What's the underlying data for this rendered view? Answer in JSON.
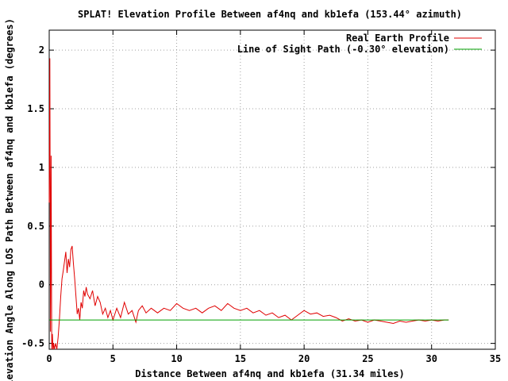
{
  "chart_data": {
    "type": "line",
    "title": "SPLAT! Elevation Profile Between af4nq and kb1efa (153.44° azimuth)",
    "xlabel": "Distance Between af4nq and kb1efa (31.34 miles)",
    "ylabel": "Elevation Angle Along LOS Path Between af4nq and kb1efa (degrees)",
    "xlim": [
      0,
      35
    ],
    "ylim": [
      -0.55,
      2.17
    ],
    "x_ticks": [
      0,
      5,
      10,
      15,
      20,
      25,
      30,
      35
    ],
    "x_tick_labels": [
      "0",
      "5",
      "10",
      "15",
      "20",
      "25",
      "30",
      "35"
    ],
    "y_ticks": [
      -0.5,
      0,
      0.5,
      1,
      1.5,
      2
    ],
    "y_tick_labels": [
      "-0.5",
      "0",
      "0.5",
      "1",
      "1.5",
      "2"
    ],
    "grid": true,
    "legend_position": "top-right",
    "colors": {
      "real_earth": "#e00000",
      "line_of_sight": "#00a000"
    },
    "series": [
      {
        "name": "Real Earth Profile",
        "x": [
          0,
          0.05,
          0.1,
          0.15,
          0.2,
          0.25,
          0.3,
          0.35,
          0.4,
          0.5,
          0.6,
          0.7,
          0.8,
          0.9,
          1.0,
          1.1,
          1.2,
          1.3,
          1.4,
          1.5,
          1.6,
          1.7,
          1.8,
          1.9,
          2.0,
          2.1,
          2.2,
          2.3,
          2.4,
          2.5,
          2.6,
          2.7,
          2.8,
          2.9,
          3.0,
          3.2,
          3.4,
          3.6,
          3.8,
          4.0,
          4.2,
          4.4,
          4.6,
          4.8,
          5.0,
          5.3,
          5.6,
          5.9,
          6.2,
          6.5,
          6.8,
          7.0,
          7.3,
          7.6,
          8.0,
          8.5,
          9.0,
          9.5,
          10.0,
          10.5,
          11.0,
          11.5,
          12.0,
          12.5,
          13.0,
          13.5,
          14.0,
          14.5,
          15.0,
          15.5,
          16.0,
          16.5,
          17.0,
          17.5,
          18.0,
          18.5,
          19.0,
          19.5,
          20.0,
          20.5,
          21.0,
          21.5,
          22.0,
          22.5,
          23.0,
          23.5,
          24.0,
          24.5,
          25.0,
          25.5,
          26.0,
          26.5,
          27.0,
          27.5,
          28.0,
          28.5,
          29.0,
          29.5,
          30.0,
          30.5,
          31.0,
          31.34
        ],
        "values": [
          0.7,
          1.93,
          -0.4,
          1.1,
          -0.55,
          -0.42,
          -0.55,
          -0.5,
          -0.55,
          -0.5,
          -0.55,
          -0.45,
          -0.3,
          -0.1,
          0.05,
          0.12,
          0.2,
          0.28,
          0.1,
          0.22,
          0.15,
          0.3,
          0.33,
          0.18,
          0.05,
          -0.1,
          -0.25,
          -0.2,
          -0.3,
          -0.15,
          -0.2,
          -0.05,
          -0.1,
          -0.02,
          -0.08,
          -0.12,
          -0.05,
          -0.18,
          -0.1,
          -0.15,
          -0.25,
          -0.2,
          -0.28,
          -0.22,
          -0.3,
          -0.2,
          -0.28,
          -0.15,
          -0.25,
          -0.22,
          -0.32,
          -0.22,
          -0.18,
          -0.24,
          -0.2,
          -0.24,
          -0.2,
          -0.22,
          -0.16,
          -0.2,
          -0.22,
          -0.2,
          -0.24,
          -0.2,
          -0.18,
          -0.22,
          -0.16,
          -0.2,
          -0.22,
          -0.2,
          -0.24,
          -0.22,
          -0.26,
          -0.24,
          -0.28,
          -0.26,
          -0.3,
          -0.26,
          -0.22,
          -0.25,
          -0.24,
          -0.27,
          -0.26,
          -0.28,
          -0.31,
          -0.29,
          -0.31,
          -0.3,
          -0.32,
          -0.3,
          -0.31,
          -0.32,
          -0.33,
          -0.31,
          -0.32,
          -0.31,
          -0.3,
          -0.31,
          -0.3,
          -0.31,
          -0.3,
          -0.3
        ]
      },
      {
        "name": "Line of Sight Path (-0.30° elevation)",
        "x": [
          0,
          31.34
        ],
        "values": [
          -0.3,
          -0.3
        ]
      }
    ]
  }
}
